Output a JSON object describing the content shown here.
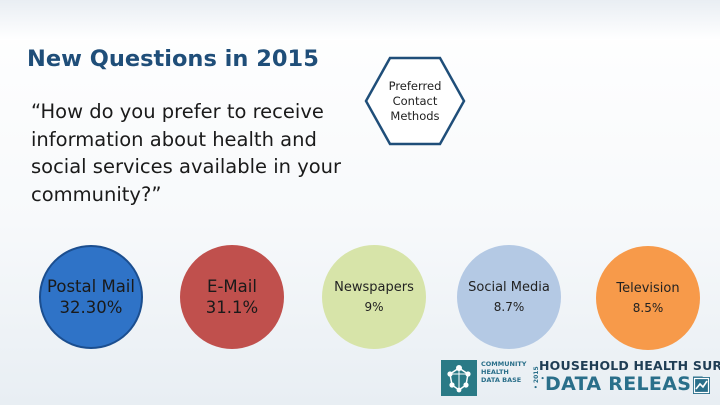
{
  "title": "New Questions in 2015",
  "question": "“How do you prefer to receive information about health and social services available in your community?”",
  "badge": {
    "label": "Preferred\nContact\nMethods"
  },
  "methods": [
    {
      "name": "Postal Mail",
      "value": "32.30%",
      "color": "#2f73c7"
    },
    {
      "name": "E-Mail",
      "value": "31.1%",
      "color": "#c0504d"
    },
    {
      "name": "Newspapers",
      "value": "9%",
      "color": "#d7e4a9"
    },
    {
      "name": "Social Media",
      "value": "8.7%",
      "color": "#b4c9e4"
    },
    {
      "name": "Television",
      "value": "8.5%",
      "color": "#f79a4a"
    }
  ],
  "logo": {
    "org": "COMMUNITY\nHEALTH\nDATA BASE",
    "year": "• 2015 •",
    "survey": "HOUSEHOLD HEALTH SURVEY",
    "release": "DATA RELEASE"
  }
}
